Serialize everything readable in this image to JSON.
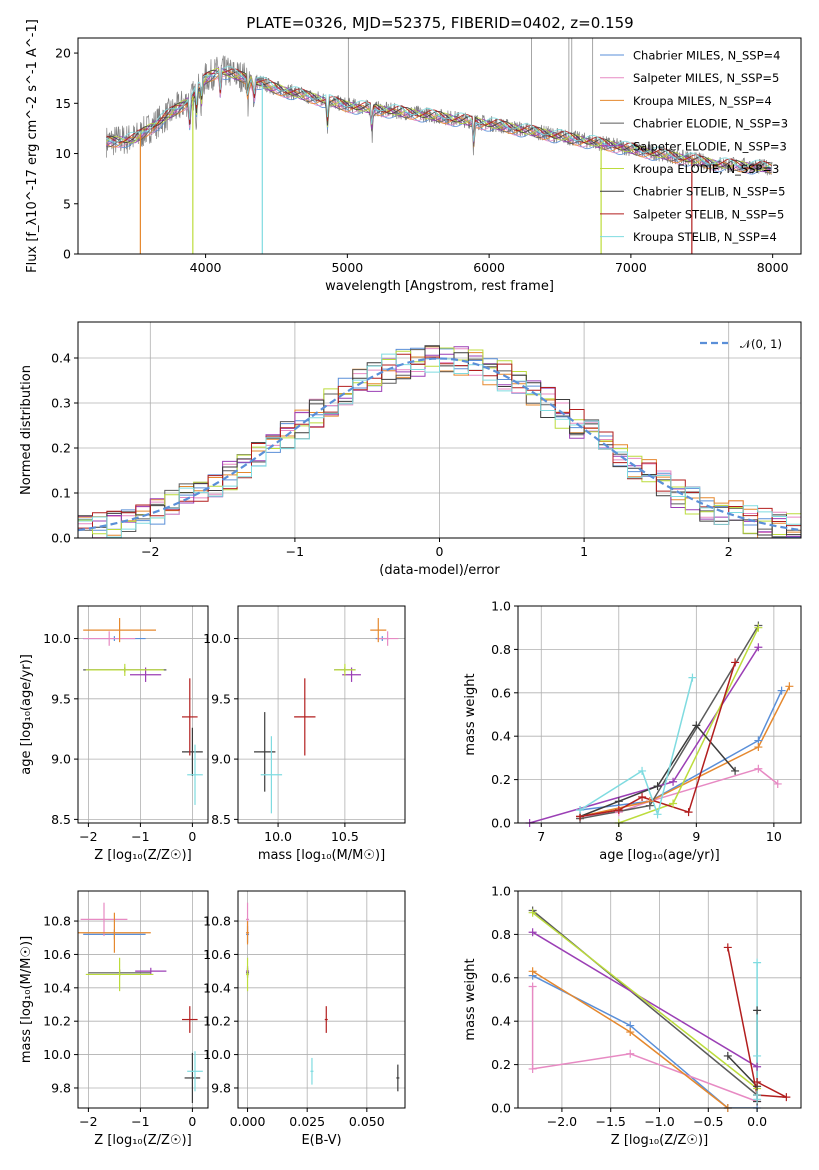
{
  "figure": {
    "title": "PLATE=0326, MJD=52375, FIBERID=0402, z=0.159"
  },
  "colors": {
    "chabrier_miles": "#5a8fd8",
    "salpeter_miles": "#e78ac3",
    "kroupa_miles": "#e5882e",
    "chabrier_elodie": "#5b5b5b",
    "salpeter_elodie": "#9b3fb5",
    "kroupa_elodie": "#bcdc3c",
    "chabrier_stelib": "#3c3c3c",
    "salpeter_stelib": "#b21e1e",
    "kroupa_stelib": "#7fdbe0",
    "data_gray": "#808080",
    "normal_curve": "#5a8fd8"
  },
  "chart_data": [
    {
      "id": "spectrum",
      "type": "line",
      "title": "PLATE=0326, MJD=52375, FIBERID=0402, z=0.159",
      "xlabel": "wavelength [Angstrom, rest frame]",
      "ylabel": "Flux [f_λ10^-17 erg cm^-2 s^-1 A^-1]",
      "xlim": [
        3100,
        8200
      ],
      "ylim": [
        0,
        21.5
      ],
      "xticks": [
        4000,
        5000,
        6000,
        7000,
        8000
      ],
      "yticks": [
        0,
        5,
        10,
        15,
        20
      ],
      "legend_position": "top-right",
      "legend": [
        "Chabrier MILES, N_SSP=4",
        "Salpeter MILES, N_SSP=5",
        "Kroupa MILES, N_SSP=4",
        "Chabrier ELODIE, N_SSP=3",
        "Salpeter ELODIE, N_SSP=3",
        "Kroupa ELODIE, N_SSP=3",
        "Chabrier STELIB, N_SSP=5",
        "Salpeter STELIB, N_SSP=5",
        "Kroupa STELIB, N_SSP=4"
      ],
      "continuum": {
        "x": [
          3300,
          3500,
          3700,
          3900,
          4000,
          4100,
          4300,
          4500,
          4700,
          5000,
          5300,
          5600,
          6000,
          6400,
          6800,
          7200,
          7600,
          8000
        ],
        "y": [
          11.2,
          11.5,
          13.5,
          15.5,
          17.5,
          18.3,
          17.5,
          16.5,
          15.8,
          14.8,
          14.3,
          13.8,
          13.0,
          12.0,
          11.0,
          10.0,
          9.0,
          8.6
        ]
      },
      "grid": false
    },
    {
      "id": "residuals",
      "type": "line",
      "xlabel": "(data-model)/error",
      "ylabel": "Normed distribution",
      "xlim": [
        -2.5,
        2.5
      ],
      "ylim": [
        0,
        0.48
      ],
      "xticks": [
        -2,
        -1,
        0,
        1,
        2
      ],
      "yticks": [
        0.0,
        0.1,
        0.2,
        0.3,
        0.4
      ],
      "legend": [
        "𝒩(0, 1)"
      ],
      "legend_position": "top-right",
      "grid": true,
      "normal": {
        "mean": 0,
        "sigma": 1
      }
    },
    {
      "id": "age-vs-z",
      "type": "scatter",
      "xlabel": "Z [log₁₀(Z/Z☉)]",
      "ylabel": "age  [log₁₀(age/yr)]",
      "xlim": [
        -2.2,
        0.3
      ],
      "ylim": [
        8.47,
        10.27
      ],
      "xticks": [
        -2,
        -1,
        0
      ],
      "yticks": [
        8.5,
        9.0,
        9.5,
        10.0
      ],
      "grid": true,
      "points": [
        {
          "model": "chabrier_miles",
          "x": -1.5,
          "y": 10.0,
          "xerr": 0.6,
          "yerr": 0.02
        },
        {
          "model": "salpeter_miles",
          "x": -1.6,
          "y": 10.0,
          "xerr": 0.5,
          "yerr": 0.06
        },
        {
          "model": "kroupa_miles",
          "x": -1.4,
          "y": 10.07,
          "xerr": 0.7,
          "yerr": 0.1
        },
        {
          "model": "chabrier_elodie",
          "x": -1.3,
          "y": 9.74,
          "xerr": 0.8,
          "yerr": 0.02
        },
        {
          "model": "salpeter_elodie",
          "x": -0.9,
          "y": 9.7,
          "xerr": 0.3,
          "yerr": 0.06
        },
        {
          "model": "kroupa_elodie",
          "x": -1.3,
          "y": 9.74,
          "xerr": 0.75,
          "yerr": 0.05
        },
        {
          "model": "chabrier_stelib",
          "x": 0.0,
          "y": 9.06,
          "xerr": 0.2,
          "yerr": 0.2
        },
        {
          "model": "salpeter_stelib",
          "x": -0.05,
          "y": 9.35,
          "xerr": 0.15,
          "yerr": 0.32
        },
        {
          "model": "kroupa_stelib",
          "x": 0.05,
          "y": 8.87,
          "xerr": 0.15,
          "yerr": 0.25
        }
      ]
    },
    {
      "id": "age-vs-mass",
      "type": "scatter",
      "xlabel": "mass [log₁₀(M/M☉)]",
      "ylabel": "",
      "xlim": [
        9.7,
        10.95
      ],
      "ylim": [
        8.47,
        10.27
      ],
      "xticks": [
        10.0,
        10.5
      ],
      "tick_labels": [
        "10.0",
        "10.5"
      ],
      "yticks": [
        8.5,
        9.0,
        9.5,
        10.0
      ],
      "grid": true,
      "points": [
        {
          "model": "chabrier_miles",
          "x": 10.78,
          "y": 10.0,
          "xerr": 0.05,
          "yerr": 0.02
        },
        {
          "model": "salpeter_miles",
          "x": 10.82,
          "y": 10.0,
          "xerr": 0.08,
          "yerr": 0.06
        },
        {
          "model": "kroupa_miles",
          "x": 10.75,
          "y": 10.07,
          "xerr": 0.06,
          "yerr": 0.1
        },
        {
          "model": "chabrier_elodie",
          "x": 10.5,
          "y": 9.74,
          "xerr": 0.08,
          "yerr": 0.02
        },
        {
          "model": "salpeter_elodie",
          "x": 10.55,
          "y": 9.7,
          "xerr": 0.07,
          "yerr": 0.06
        },
        {
          "model": "kroupa_elodie",
          "x": 10.5,
          "y": 9.74,
          "xerr": 0.08,
          "yerr": 0.05
        },
        {
          "model": "chabrier_stelib",
          "x": 9.9,
          "y": 9.06,
          "xerr": 0.08,
          "yerr": 0.33
        },
        {
          "model": "salpeter_stelib",
          "x": 10.2,
          "y": 9.35,
          "xerr": 0.08,
          "yerr": 0.32
        },
        {
          "model": "kroupa_stelib",
          "x": 9.95,
          "y": 8.87,
          "xerr": 0.08,
          "yerr": 0.32
        }
      ]
    },
    {
      "id": "weight-vs-age",
      "type": "line",
      "xlabel": "age  [log₁₀(age/yr)]",
      "ylabel": "mass weight",
      "xlim": [
        6.7,
        10.35
      ],
      "ylim": [
        0,
        1.0
      ],
      "xticks": [
        7,
        8,
        9,
        10
      ],
      "yticks": [
        0.0,
        0.2,
        0.4,
        0.6,
        0.8,
        1.0
      ],
      "grid": true,
      "series": [
        {
          "model": "chabrier_miles",
          "x": [
            7.5,
            8.4,
            9.8,
            10.1
          ],
          "y": [
            0.06,
            0.1,
            0.38,
            0.61
          ]
        },
        {
          "model": "salpeter_miles",
          "x": [
            7.5,
            8.0,
            8.4,
            9.8,
            10.05
          ],
          "y": [
            0.03,
            0.05,
            0.1,
            0.25,
            0.18
          ]
        },
        {
          "model": "kroupa_miles",
          "x": [
            7.5,
            8.4,
            9.8,
            10.2
          ],
          "y": [
            0.03,
            0.1,
            0.35,
            0.63
          ]
        },
        {
          "model": "chabrier_elodie",
          "x": [
            7.5,
            8.4,
            9.8
          ],
          "y": [
            0.02,
            0.08,
            0.91
          ]
        },
        {
          "model": "salpeter_elodie",
          "x": [
            6.85,
            8.7,
            9.8
          ],
          "y": [
            0.0,
            0.19,
            0.81
          ]
        },
        {
          "model": "kroupa_elodie",
          "x": [
            8.0,
            8.7,
            9.8
          ],
          "y": [
            0.0,
            0.09,
            0.9
          ]
        },
        {
          "model": "chabrier_stelib",
          "x": [
            7.5,
            8.0,
            8.5,
            9.0,
            9.5
          ],
          "y": [
            0.03,
            0.1,
            0.17,
            0.45,
            0.24
          ]
        },
        {
          "model": "salpeter_stelib",
          "x": [
            7.5,
            8.0,
            8.3,
            8.9,
            9.5
          ],
          "y": [
            0.03,
            0.06,
            0.12,
            0.05,
            0.74
          ]
        },
        {
          "model": "kroupa_stelib",
          "x": [
            7.5,
            8.3,
            8.5,
            8.95
          ],
          "y": [
            0.06,
            0.24,
            0.04,
            0.67
          ]
        }
      ]
    },
    {
      "id": "mass-vs-z",
      "type": "scatter",
      "xlabel": "Z [log₁₀(Z/Z☉)]",
      "ylabel": "mass [log₁₀(M/M☉)]",
      "xlim": [
        -2.2,
        0.3
      ],
      "ylim": [
        9.68,
        10.98
      ],
      "xticks": [
        -2,
        -1,
        0
      ],
      "yticks": [
        9.8,
        10.0,
        10.2,
        10.4,
        10.6,
        10.8
      ],
      "grid": true,
      "points": [
        {
          "model": "chabrier_miles",
          "x": -1.5,
          "y": 10.72,
          "xerr": 0.6,
          "yerr": 0.03
        },
        {
          "model": "salpeter_miles",
          "x": -1.7,
          "y": 10.81,
          "xerr": 0.45,
          "yerr": 0.1
        },
        {
          "model": "kroupa_miles",
          "x": -1.5,
          "y": 10.73,
          "xerr": 0.7,
          "yerr": 0.12
        },
        {
          "model": "chabrier_elodie",
          "x": -1.4,
          "y": 10.49,
          "xerr": 0.6,
          "yerr": 0.02
        },
        {
          "model": "salpeter_elodie",
          "x": -0.8,
          "y": 10.5,
          "xerr": 0.3,
          "yerr": 0.02
        },
        {
          "model": "kroupa_elodie",
          "x": -1.4,
          "y": 10.48,
          "xerr": 0.65,
          "yerr": 0.1
        },
        {
          "model": "chabrier_stelib",
          "x": 0.0,
          "y": 9.86,
          "xerr": 0.15,
          "yerr": 0.15
        },
        {
          "model": "salpeter_stelib",
          "x": -0.05,
          "y": 10.21,
          "xerr": 0.15,
          "yerr": 0.08
        },
        {
          "model": "kroupa_stelib",
          "x": 0.05,
          "y": 9.9,
          "xerr": 0.15,
          "yerr": 0.12
        }
      ]
    },
    {
      "id": "mass-vs-ebv",
      "type": "scatter",
      "xlabel": "E(B-V)",
      "ylabel": "",
      "xlim": [
        -0.004,
        0.066
      ],
      "ylim": [
        9.68,
        10.98
      ],
      "xticks": [
        0.0,
        0.025,
        0.05
      ],
      "tick_labels": [
        "0.000",
        "0.025",
        "0.050"
      ],
      "yticks": [
        9.8,
        10.0,
        10.2,
        10.4,
        10.6,
        10.8
      ],
      "grid": true,
      "points": [
        {
          "model": "chabrier_miles",
          "x": 0.0,
          "y": 10.72,
          "xerr": 0,
          "yerr": 0.05
        },
        {
          "model": "salpeter_miles",
          "x": 0.0,
          "y": 10.81,
          "xerr": 0,
          "yerr": 0.1
        },
        {
          "model": "kroupa_miles",
          "x": 0.0,
          "y": 10.73,
          "xerr": 0,
          "yerr": 0.07
        },
        {
          "model": "chabrier_elodie",
          "x": 0.0,
          "y": 10.49,
          "xerr": 0,
          "yerr": 0.03
        },
        {
          "model": "salpeter_elodie",
          "x": 0.0,
          "y": 10.5,
          "xerr": 0,
          "yerr": 0.03
        },
        {
          "model": "kroupa_elodie",
          "x": 0.0,
          "y": 10.48,
          "xerr": 0,
          "yerr": 0.1
        },
        {
          "model": "chabrier_stelib",
          "x": 0.063,
          "y": 9.86,
          "xerr": 0,
          "yerr": 0.08
        },
        {
          "model": "salpeter_stelib",
          "x": 0.033,
          "y": 10.21,
          "xerr": 0,
          "yerr": 0.08
        },
        {
          "model": "kroupa_stelib",
          "x": 0.027,
          "y": 9.9,
          "xerr": 0,
          "yerr": 0.08
        }
      ]
    },
    {
      "id": "weight-vs-z",
      "type": "line",
      "xlabel": "Z [log₁₀(Z/Z☉)]",
      "ylabel": "mass weight",
      "xlim": [
        -2.45,
        0.45
      ],
      "ylim": [
        0,
        1.0
      ],
      "xticks": [
        -2.0,
        -1.5,
        -1.0,
        -0.5,
        0.0
      ],
      "tick_labels": [
        "−2.0",
        "−1.5",
        "−1.0",
        "−0.5",
        "0.0"
      ],
      "yticks": [
        0.0,
        0.2,
        0.4,
        0.6,
        0.8,
        1.0
      ],
      "grid": true,
      "series": [
        {
          "model": "chabrier_miles",
          "x": [
            -2.3,
            -1.3,
            -0.3,
            0.0
          ],
          "y": [
            0.61,
            0.38,
            0.0,
            0.0
          ]
        },
        {
          "model": "salpeter_miles",
          "x": [
            -2.3,
            -2.3,
            -1.3,
            0.0
          ],
          "y": [
            0.56,
            0.18,
            0.25,
            0.03
          ]
        },
        {
          "model": "kroupa_miles",
          "x": [
            -2.3,
            -1.3,
            -0.3
          ],
          "y": [
            0.63,
            0.35,
            0.0
          ]
        },
        {
          "model": "chabrier_elodie",
          "x": [
            -2.3,
            0.0
          ],
          "y": [
            0.91,
            0.06
          ]
        },
        {
          "model": "salpeter_elodie",
          "x": [
            -2.3,
            0.0
          ],
          "y": [
            0.81,
            0.19
          ]
        },
        {
          "model": "kroupa_elodie",
          "x": [
            -2.3,
            0.0
          ],
          "y": [
            0.9,
            0.09
          ]
        },
        {
          "model": "chabrier_stelib",
          "x": [
            -0.3,
            0.0,
            0.0,
            0.0
          ],
          "y": [
            0.24,
            0.1,
            0.45,
            0.03
          ]
        },
        {
          "model": "salpeter_stelib",
          "x": [
            -0.3,
            0.0,
            0.3,
            0.0
          ],
          "y": [
            0.74,
            0.06,
            0.05,
            0.12
          ]
        },
        {
          "model": "kroupa_stelib",
          "x": [
            0.0,
            0.0,
            0.0,
            0.0
          ],
          "y": [
            0.67,
            0.24,
            0.06,
            0.04
          ]
        }
      ]
    }
  ]
}
